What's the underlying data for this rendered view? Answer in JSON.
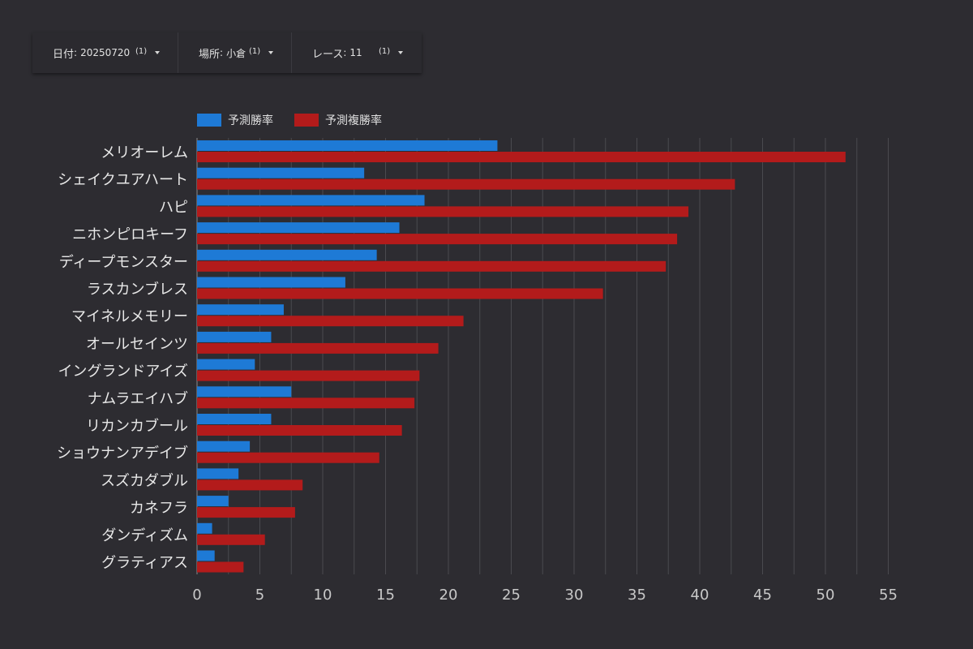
{
  "filters": [
    {
      "label": "日付",
      "value": "20250720",
      "count": "(1)"
    },
    {
      "label": "場所",
      "value": "小倉",
      "count": "(1)"
    },
    {
      "label": "レース",
      "value": "11",
      "count": "(1)"
    }
  ],
  "colors": {
    "series1": "#1e7ad6",
    "series2": "#b31b1b",
    "grid": "#4a4a4f",
    "axis": "#8c8c90"
  },
  "chart_data": {
    "type": "bar",
    "orientation": "horizontal",
    "legend_position": "top-left",
    "grid": true,
    "xlim": [
      0,
      55
    ],
    "xticks": [
      "0",
      "5",
      "10",
      "15",
      "20",
      "25",
      "30",
      "35",
      "40",
      "45",
      "50",
      "55"
    ],
    "categories": [
      "メリオーレム",
      "シェイクユアハート",
      "ハピ",
      "ニホンピロキーフ",
      "ディープモンスター",
      "ラスカンブレス",
      "マイネルメモリー",
      "オールセインツ",
      "イングランドアイズ",
      "ナムラエイハブ",
      "リカンカブール",
      "ショウナンアデイブ",
      "スズカダブル",
      "カネフラ",
      "ダンディズム",
      "グラティアス"
    ],
    "series": [
      {
        "name": "予測勝率",
        "color": "#1e7ad6",
        "values": [
          23.9,
          13.3,
          18.1,
          16.1,
          14.3,
          11.8,
          6.9,
          5.9,
          4.6,
          7.5,
          5.9,
          4.2,
          3.3,
          2.5,
          1.2,
          1.4
        ]
      },
      {
        "name": "予測複勝率",
        "color": "#b31b1b",
        "values": [
          51.6,
          42.8,
          39.1,
          38.2,
          37.3,
          32.3,
          21.2,
          19.2,
          17.7,
          17.3,
          16.3,
          14.5,
          8.4,
          7.8,
          5.4,
          3.7
        ]
      }
    ]
  }
}
